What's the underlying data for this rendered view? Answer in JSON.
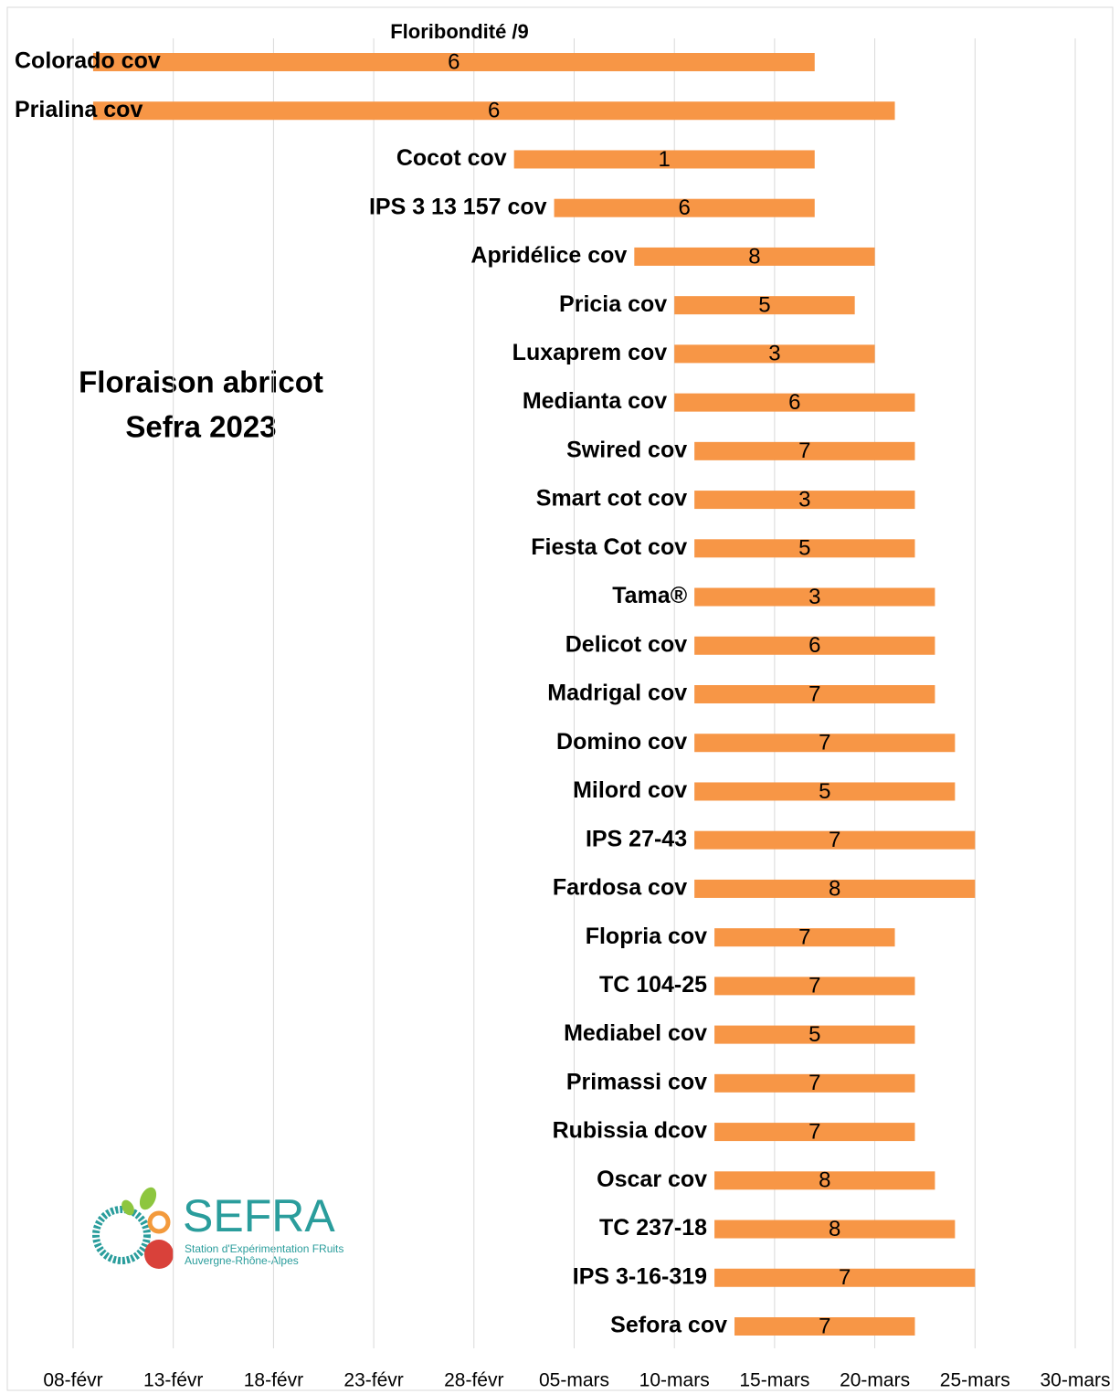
{
  "chart_data": {
    "type": "floating-bar",
    "title": "Floraison abricot",
    "subtitle": "Sefra 2023",
    "label_title": "Floribondité /9",
    "color": "#f79646",
    "categories": [
      "Colorado cov",
      "Prialina cov",
      "Cocot cov",
      "IPS 3 13 157 cov",
      "Apridélice cov",
      "Pricia cov",
      "Luxaprem cov",
      "Medianta cov",
      "Swired cov",
      "Smart cot cov",
      "Fiesta Cot cov",
      "Tama®",
      "Delicot cov",
      "Madrigal cov",
      "Domino cov",
      "Milord cov",
      "IPS 27-43",
      "Fardosa cov",
      "Flopria cov",
      "TC 104-25",
      "Mediabel cov",
      "Primassi cov",
      "Rubissia dcov",
      "Oscar cov",
      "TC 237-18",
      "IPS 3-16-319",
      "Sefora cov"
    ],
    "start": [
      "2023-02-09",
      "2023-02-09",
      "2023-03-02",
      "2023-03-04",
      "2023-03-08",
      "2023-03-10",
      "2023-03-10",
      "2023-03-10",
      "2023-03-11",
      "2023-03-11",
      "2023-03-11",
      "2023-03-11",
      "2023-03-11",
      "2023-03-11",
      "2023-03-11",
      "2023-03-11",
      "2023-03-11",
      "2023-03-11",
      "2023-03-12",
      "2023-03-12",
      "2023-03-12",
      "2023-03-12",
      "2023-03-12",
      "2023-03-12",
      "2023-03-12",
      "2023-03-12",
      "2023-03-13"
    ],
    "end": [
      "2023-03-17",
      "2023-03-21",
      "2023-03-17",
      "2023-03-17",
      "2023-03-20",
      "2023-03-19",
      "2023-03-20",
      "2023-03-22",
      "2023-03-22",
      "2023-03-22",
      "2023-03-22",
      "2023-03-23",
      "2023-03-23",
      "2023-03-23",
      "2023-03-24",
      "2023-03-24",
      "2023-03-25",
      "2023-03-25",
      "2023-03-21",
      "2023-03-22",
      "2023-03-22",
      "2023-03-22",
      "2023-03-22",
      "2023-03-23",
      "2023-03-24",
      "2023-03-25",
      "2023-03-22"
    ],
    "floribondite": [
      6,
      6,
      1,
      6,
      8,
      5,
      3,
      6,
      7,
      3,
      5,
      3,
      6,
      7,
      7,
      5,
      7,
      8,
      7,
      7,
      5,
      7,
      7,
      8,
      8,
      7,
      7
    ],
    "xlim": [
      "2023-02-08",
      "2023-03-30"
    ],
    "xticks": [
      {
        "value": "2023-02-08",
        "label": "08-févr"
      },
      {
        "value": "2023-02-13",
        "label": "13-févr"
      },
      {
        "value": "2023-02-18",
        "label": "18-févr"
      },
      {
        "value": "2023-02-23",
        "label": "23-févr"
      },
      {
        "value": "2023-02-28",
        "label": "28-févr"
      },
      {
        "value": "2023-03-05",
        "label": "05-mars"
      },
      {
        "value": "2023-03-10",
        "label": "10-mars"
      },
      {
        "value": "2023-03-15",
        "label": "15-mars"
      },
      {
        "value": "2023-03-20",
        "label": "20-mars"
      },
      {
        "value": "2023-03-25",
        "label": "25-mars"
      },
      {
        "value": "2023-03-30",
        "label": "30-mars"
      }
    ],
    "grid": true
  },
  "logo": {
    "name": "SEFRA",
    "tagline": [
      "Station d'Expérimentation FRuits",
      "Auvergne-Rhône-Alpes"
    ]
  }
}
